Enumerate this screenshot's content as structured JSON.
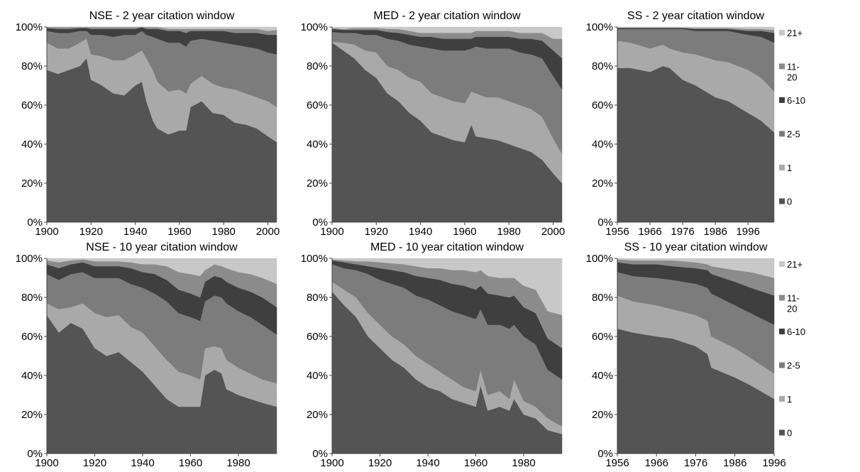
{
  "colors": {
    "c0": "#545454",
    "c1": "#a9a9a9",
    "c2_5": "#7c7c7c",
    "c6_10": "#3f3f3f",
    "c11_20": "#8b8b8b",
    "c21": "#c8c8c8"
  },
  "legend": [
    {
      "label": "21+",
      "color_key": "c21"
    },
    {
      "label": "11-\n20",
      "color_key": "c11_20"
    },
    {
      "label": "6-10",
      "color_key": "c6_10"
    },
    {
      "label": "2-5",
      "color_key": "c2_5"
    },
    {
      "label": "1",
      "color_key": "c1"
    },
    {
      "label": "0",
      "color_key": "c0"
    }
  ],
  "chart_data": [
    {
      "type": "area",
      "stacked": "percent",
      "title": "NSE - 2 year citation window",
      "y_ticks": [
        "0%",
        "20%",
        "40%",
        "60%",
        "80%",
        "100%"
      ],
      "x_ticks": [
        "1900",
        "1920",
        "1940",
        "1960",
        "1980",
        "2000"
      ],
      "xlim": [
        1900,
        2004
      ],
      "ylim": [
        0,
        100
      ],
      "tick_years": [
        1900,
        1920,
        1940,
        1960,
        1980,
        2000
      ],
      "x": [
        1900,
        1905,
        1910,
        1915,
        1918,
        1920,
        1925,
        1930,
        1935,
        1940,
        1943,
        1945,
        1948,
        1950,
        1955,
        1960,
        1963,
        1965,
        1970,
        1975,
        1980,
        1985,
        1990,
        1995,
        2000,
        2004
      ],
      "series": [
        {
          "color_key": "c0",
          "values": [
            78,
            76,
            78,
            80,
            84,
            73,
            70,
            66,
            65,
            70,
            72,
            62,
            52,
            48,
            45,
            47,
            47,
            59,
            62,
            56,
            55,
            51,
            50,
            48,
            44,
            41
          ]
        },
        {
          "color_key": "c1",
          "values": [
            14,
            13,
            11,
            12,
            10,
            13,
            15,
            17,
            18,
            16,
            16,
            22,
            26,
            24,
            22,
            21,
            19,
            12,
            13,
            15,
            14,
            17,
            16,
            16,
            18,
            18
          ]
        },
        {
          "color_key": "c2_5",
          "values": [
            6,
            8,
            8,
            6,
            4,
            10,
            11,
            12,
            13,
            10,
            10,
            12,
            17,
            22,
            25,
            24,
            24,
            22,
            19,
            22,
            23,
            23,
            24,
            25,
            25,
            27
          ]
        },
        {
          "color_key": "c6_10",
          "values": [
            1.5,
            2,
            2,
            1.5,
            1.5,
            3,
            3,
            4,
            3,
            3,
            2,
            3,
            4,
            5,
            6,
            6,
            7,
            5,
            4,
            5,
            6,
            6,
            7,
            8,
            9,
            10
          ]
        },
        {
          "color_key": "c11_20",
          "values": [
            0.5,
            1,
            1,
            0.5,
            0.5,
            1,
            1,
            1,
            1,
            1,
            0,
            1,
            1,
            1,
            1,
            1,
            2,
            1,
            1,
            1,
            1,
            2,
            2,
            2,
            2,
            2.5
          ]
        },
        {
          "color_key": "c21",
          "values": [
            0,
            0,
            0,
            0,
            0,
            0,
            0,
            0,
            0,
            0,
            0,
            0,
            0,
            0,
            1,
            1,
            1,
            1,
            1,
            1,
            1,
            1,
            1,
            1,
            2,
            1.5
          ]
        }
      ]
    },
    {
      "type": "area",
      "stacked": "percent",
      "title": "MED - 2 year citation window",
      "y_ticks": [
        "0%",
        "20%",
        "40%",
        "60%",
        "80%",
        "100%"
      ],
      "x_ticks": [
        "1900",
        "1920",
        "1940",
        "1960",
        "1980",
        "2000"
      ],
      "xlim": [
        1900,
        2004
      ],
      "ylim": [
        0,
        100
      ],
      "tick_years": [
        1900,
        1920,
        1940,
        1960,
        1980,
        2000
      ],
      "x": [
        1900,
        1905,
        1910,
        1915,
        1920,
        1925,
        1930,
        1935,
        1940,
        1945,
        1950,
        1955,
        1960,
        1963,
        1965,
        1970,
        1975,
        1980,
        1985,
        1990,
        1995,
        2000,
        2004
      ],
      "series": [
        {
          "color_key": "c0",
          "values": [
            92,
            88,
            84,
            78,
            74,
            66,
            62,
            56,
            52,
            46,
            44,
            42,
            41,
            50,
            44,
            43,
            42,
            40,
            38,
            36,
            32,
            25,
            20
          ]
        },
        {
          "color_key": "c1",
          "values": [
            0.5,
            4,
            7,
            10,
            13,
            14,
            16,
            18,
            20,
            20,
            20,
            20,
            20,
            17,
            22,
            21,
            22,
            22,
            22,
            22,
            22,
            18,
            15
          ]
        },
        {
          "color_key": "c2_5",
          "values": [
            5,
            5,
            6,
            8,
            9,
            14,
            15,
            17,
            18,
            23,
            24,
            26,
            27,
            22,
            24,
            25,
            25,
            27,
            27,
            28,
            30,
            32,
            33
          ]
        },
        {
          "color_key": "c6_10",
          "values": [
            1.5,
            1.5,
            1.5,
            2.5,
            2.5,
            3.5,
            4,
            5,
            5,
            6,
            6,
            6,
            6,
            5,
            5,
            6,
            6,
            6,
            7,
            8,
            9,
            13,
            16
          ]
        },
        {
          "color_key": "c11_20",
          "values": [
            0.5,
            0.5,
            1,
            1,
            1,
            1.5,
            2,
            2,
            2,
            2,
            3,
            3,
            3,
            3,
            3,
            3,
            3,
            3,
            3,
            3,
            4,
            6,
            10
          ]
        },
        {
          "color_key": "c21",
          "values": [
            0.5,
            1,
            0.5,
            0.5,
            0.5,
            1,
            1,
            2,
            3,
            3,
            3,
            3,
            3,
            3,
            2,
            2,
            2,
            2,
            3,
            3,
            3,
            6,
            6
          ]
        }
      ]
    },
    {
      "type": "area",
      "stacked": "percent",
      "title": "SS - 2 year citation window",
      "y_ticks": [
        "0%",
        "20%",
        "40%",
        "60%",
        "80%",
        "100%"
      ],
      "x_ticks": [
        "1956",
        "1966",
        "1976",
        "1986",
        "1996"
      ],
      "xlim": [
        1956,
        2004
      ],
      "ylim": [
        0,
        100
      ],
      "tick_years": [
        1956,
        1966,
        1976,
        1986,
        1996
      ],
      "x": [
        1956,
        1960,
        1966,
        1970,
        1972,
        1976,
        1980,
        1986,
        1990,
        1996,
        2000,
        2004
      ],
      "series": [
        {
          "color_key": "c0",
          "values": [
            79,
            79,
            77,
            80,
            79,
            73,
            70,
            64,
            62,
            56,
            52,
            46
          ]
        },
        {
          "color_key": "c1",
          "values": [
            14,
            13,
            12,
            11,
            10,
            14,
            16,
            19,
            20,
            22,
            22,
            21
          ]
        },
        {
          "color_key": "c2_5",
          "values": [
            6,
            7,
            10,
            8,
            10,
            12,
            12,
            15,
            16,
            18,
            21,
            25
          ]
        },
        {
          "color_key": "c6_10",
          "values": [
            0.5,
            0.5,
            0.5,
            0.5,
            0.5,
            0.5,
            1,
            1,
            1,
            2,
            3,
            5
          ]
        },
        {
          "color_key": "c11_20",
          "values": [
            0.3,
            0.3,
            0.3,
            0.3,
            0.3,
            0.3,
            0.5,
            0.5,
            0.5,
            1,
            1,
            1.5
          ]
        },
        {
          "color_key": "c21",
          "values": [
            0.2,
            0.2,
            0.2,
            0.2,
            0.2,
            0.2,
            0.5,
            0.5,
            0.5,
            1,
            1,
            1.5
          ]
        }
      ]
    },
    {
      "type": "area",
      "stacked": "percent",
      "title": "NSE - 10 year citation window",
      "y_ticks": [
        "0%",
        "20%",
        "40%",
        "60%",
        "80%",
        "100%"
      ],
      "x_ticks": [
        "1900",
        "1920",
        "1940",
        "1960",
        "1980"
      ],
      "xlim": [
        1900,
        1996
      ],
      "ylim": [
        0,
        100
      ],
      "tick_years": [
        1900,
        1920,
        1940,
        1960,
        1980
      ],
      "x": [
        1900,
        1905,
        1910,
        1915,
        1920,
        1925,
        1930,
        1935,
        1940,
        1945,
        1950,
        1955,
        1960,
        1964,
        1966,
        1970,
        1973,
        1975,
        1980,
        1985,
        1990,
        1996
      ],
      "series": [
        {
          "color_key": "c0",
          "values": [
            71,
            62,
            67,
            64,
            54,
            50,
            52,
            47,
            42,
            35,
            28,
            24,
            24,
            24,
            40,
            43,
            41,
            33,
            30,
            28,
            26,
            24
          ]
        },
        {
          "color_key": "c1",
          "values": [
            6,
            12,
            8,
            13,
            18,
            20,
            19,
            18,
            20,
            20,
            20,
            18,
            16,
            14,
            14,
            12,
            13,
            15,
            14,
            13,
            12,
            12
          ]
        },
        {
          "color_key": "c2_5",
          "values": [
            15,
            15,
            17,
            16,
            18,
            20,
            19,
            22,
            23,
            27,
            30,
            30,
            30,
            30,
            24,
            26,
            26,
            29,
            29,
            29,
            28,
            25
          ]
        },
        {
          "color_key": "c6_10",
          "values": [
            5,
            6,
            5,
            5,
            6,
            6,
            6,
            8,
            8,
            10,
            11,
            12,
            12,
            12,
            10,
            10,
            10,
            11,
            12,
            13,
            14,
            14
          ]
        },
        {
          "color_key": "c11_20",
          "values": [
            2,
            3,
            2,
            1.5,
            2.5,
            2.5,
            2.5,
            3,
            4,
            5,
            7,
            9,
            10,
            11,
            6,
            6,
            6,
            7,
            8,
            9,
            10,
            12
          ]
        },
        {
          "color_key": "c21",
          "values": [
            1,
            2,
            1,
            0.5,
            1.5,
            1.5,
            1.5,
            2,
            3,
            3,
            4,
            7,
            8,
            9,
            6,
            3,
            4,
            5,
            7,
            8,
            10,
            13
          ]
        }
      ]
    },
    {
      "type": "area",
      "stacked": "percent",
      "title": "MED - 10 year citation window",
      "y_ticks": [
        "0%",
        "20%",
        "40%",
        "60%",
        "80%",
        "100%"
      ],
      "x_ticks": [
        "1900",
        "1920",
        "1940",
        "1960",
        "1980"
      ],
      "xlim": [
        1900,
        1996
      ],
      "ylim": [
        0,
        100
      ],
      "tick_years": [
        1900,
        1920,
        1940,
        1960,
        1980
      ],
      "x": [
        1900,
        1905,
        1910,
        1915,
        1920,
        1925,
        1930,
        1935,
        1940,
        1945,
        1950,
        1955,
        1960,
        1962,
        1965,
        1970,
        1974,
        1976,
        1980,
        1985,
        1990,
        1996
      ],
      "series": [
        {
          "color_key": "c0",
          "values": [
            83,
            76,
            70,
            60,
            54,
            48,
            44,
            38,
            34,
            32,
            28,
            26,
            24,
            35,
            22,
            24,
            22,
            28,
            20,
            18,
            12,
            10
          ]
        },
        {
          "color_key": "c1",
          "values": [
            5,
            8,
            10,
            12,
            12,
            12,
            12,
            12,
            12,
            10,
            10,
            8,
            8,
            8,
            8,
            8,
            6,
            10,
            7,
            6,
            6,
            4
          ]
        },
        {
          "color_key": "c2_5",
          "values": [
            9,
            11,
            14,
            20,
            23,
            27,
            29,
            31,
            33,
            34,
            35,
            37,
            37,
            31,
            36,
            34,
            36,
            28,
            33,
            32,
            25,
            24
          ]
        },
        {
          "color_key": "c6_10",
          "values": [
            2,
            3,
            3,
            4,
            6,
            7,
            8,
            10,
            11,
            13,
            14,
            15,
            15,
            12,
            16,
            15,
            16,
            15,
            15,
            16,
            16,
            16
          ]
        },
        {
          "color_key": "c11_20",
          "values": [
            0.5,
            1,
            1.5,
            2.5,
            3,
            3.5,
            4,
            5,
            5,
            6,
            7,
            8,
            9,
            8,
            9,
            9,
            10,
            9,
            11,
            12,
            14,
            17
          ]
        },
        {
          "color_key": "c21",
          "values": [
            0.5,
            1,
            1.5,
            1.5,
            2,
            2.5,
            3,
            4,
            5,
            5,
            6,
            6,
            7,
            6,
            9,
            10,
            10,
            10,
            14,
            16,
            27,
            29
          ]
        }
      ]
    },
    {
      "type": "area",
      "stacked": "percent",
      "title": "SS - 10 year citation window",
      "y_ticks": [
        "0%",
        "20%",
        "40%",
        "60%",
        "80%",
        "100%"
      ],
      "x_ticks": [
        "1956",
        "1966",
        "1976",
        "1986",
        "1996"
      ],
      "xlim": [
        1956,
        1996
      ],
      "ylim": [
        0,
        100
      ],
      "tick_years": [
        1956,
        1966,
        1976,
        1986,
        1996
      ],
      "x": [
        1956,
        1960,
        1966,
        1970,
        1976,
        1979,
        1980,
        1986,
        1990,
        1996
      ],
      "series": [
        {
          "color_key": "c0",
          "values": [
            64,
            62,
            60,
            59,
            55,
            51,
            44,
            39,
            35,
            28
          ]
        },
        {
          "color_key": "c1",
          "values": [
            17,
            16,
            16,
            15,
            16,
            17,
            16,
            15,
            14,
            13
          ]
        },
        {
          "color_key": "c2_5",
          "values": [
            12,
            13,
            14,
            15,
            16,
            17,
            22,
            22,
            23,
            25
          ]
        },
        {
          "color_key": "c6_10",
          "values": [
            5,
            6,
            7,
            7,
            8,
            9,
            10,
            12,
            13,
            15
          ]
        },
        {
          "color_key": "c11_20",
          "values": [
            1.5,
            2,
            2,
            3,
            3,
            3,
            4,
            6,
            8,
            9
          ]
        },
        {
          "color_key": "c21",
          "values": [
            0.5,
            1,
            1,
            1,
            2,
            3,
            4,
            6,
            7,
            10
          ]
        }
      ]
    }
  ]
}
